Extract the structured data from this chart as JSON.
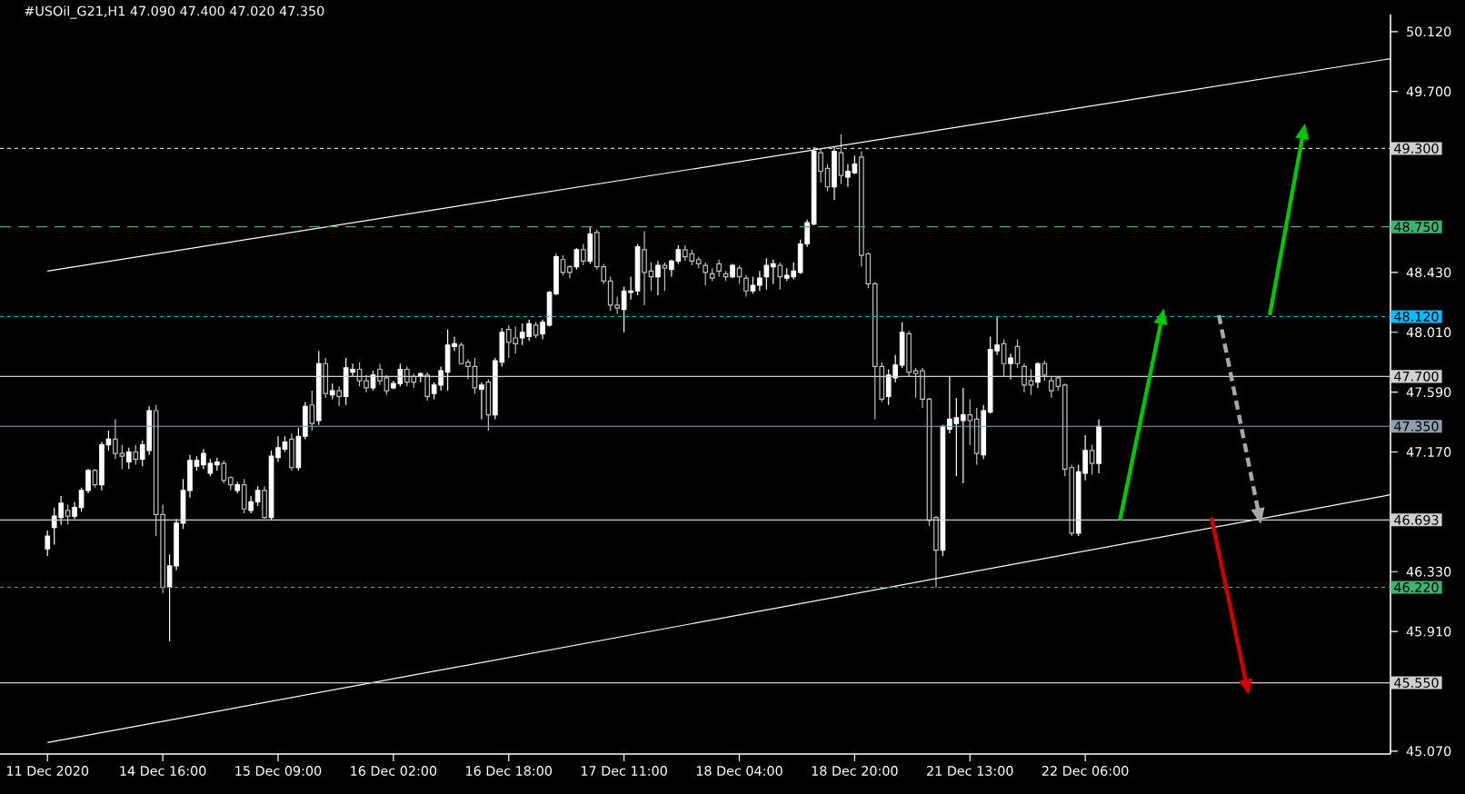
{
  "chart_data": {
    "type": "candlestick",
    "title": "#USOil_G21,H1 47.090 47.400 47.020 47.350",
    "categories": [
      "11 Dec 2020",
      null,
      null,
      null,
      null,
      null,
      null,
      null,
      null,
      null,
      null,
      null,
      null,
      null,
      null,
      null,
      null,
      "14 Dec 16:00",
      null,
      null,
      null,
      null,
      null,
      null,
      null,
      null,
      null,
      null,
      null,
      null,
      null,
      null,
      null,
      null,
      "15 Dec 09:00",
      null,
      null,
      null,
      null,
      null,
      null,
      null,
      null,
      null,
      null,
      null,
      null,
      null,
      null,
      null,
      null,
      "16 Dec 02:00",
      null,
      null,
      null,
      null,
      null,
      null,
      null,
      null,
      null,
      null,
      null,
      null,
      null,
      null,
      null,
      null,
      "16 Dec 18:00",
      null,
      null,
      null,
      null,
      null,
      null,
      null,
      null,
      null,
      null,
      null,
      null,
      null,
      null,
      null,
      null,
      "17 Dec 11:00",
      null,
      null,
      null,
      null,
      null,
      null,
      null,
      null,
      null,
      null,
      null,
      null,
      null,
      null,
      null,
      null,
      "18 Dec 04:00",
      null,
      null,
      null,
      null,
      null,
      null,
      null,
      null,
      null,
      null,
      null,
      null,
      null,
      null,
      null,
      null,
      "18 Dec 20:00",
      null,
      null,
      null,
      null,
      null,
      null,
      null,
      null,
      null,
      null,
      null,
      null,
      null,
      null,
      null,
      null,
      "21 Dec 13:00",
      null,
      null,
      null,
      null,
      null,
      null,
      null,
      null,
      null,
      null,
      null,
      null,
      null,
      null,
      null,
      null,
      "22 Dec 06:00",
      null,
      null,
      null,
      null,
      null,
      null,
      null,
      null,
      null,
      null,
      null,
      null,
      null,
      null,
      null,
      null,
      null,
      null,
      null,
      null,
      null,
      null,
      null,
      null,
      null,
      null,
      null,
      null,
      null,
      null,
      null,
      null,
      null,
      null,
      null,
      null,
      null,
      null,
      null,
      null,
      null,
      null,
      null,
      null,
      null
    ],
    "ohlc": [
      [
        46.49,
        46.62,
        46.44,
        46.58
      ],
      [
        46.64,
        46.78,
        46.52,
        46.72
      ],
      [
        46.71,
        46.86,
        46.66,
        46.81
      ],
      [
        46.76,
        46.8,
        46.66,
        46.72
      ],
      [
        46.72,
        46.82,
        46.7,
        46.78
      ],
      [
        46.78,
        46.92,
        46.75,
        46.9
      ],
      [
        46.9,
        47.05,
        46.88,
        47.04
      ],
      [
        47.04,
        47.05,
        46.92,
        46.94
      ],
      [
        46.94,
        47.24,
        46.9,
        47.22
      ],
      [
        47.22,
        47.32,
        47.18,
        47.26
      ],
      [
        47.26,
        47.4,
        47.12,
        47.16
      ],
      [
        47.16,
        47.22,
        47.05,
        47.14
      ],
      [
        47.1,
        47.2,
        47.05,
        47.17
      ],
      [
        47.17,
        47.22,
        47.08,
        47.12
      ],
      [
        47.12,
        47.25,
        47.07,
        47.22
      ],
      [
        47.18,
        47.49,
        47.15,
        47.46
      ],
      [
        47.46,
        47.5,
        46.58,
        46.73
      ],
      [
        46.73,
        46.8,
        46.18,
        46.22
      ],
      [
        46.22,
        46.45,
        45.84,
        46.37
      ],
      [
        46.37,
        46.7,
        46.34,
        46.67
      ],
      [
        46.67,
        46.98,
        46.63,
        46.9
      ],
      [
        46.9,
        47.15,
        46.85,
        47.11
      ],
      [
        47.07,
        47.14,
        47.04,
        47.11
      ],
      [
        47.08,
        47.19,
        47.05,
        47.16
      ],
      [
        47.02,
        47.12,
        47.0,
        47.09
      ],
      [
        47.08,
        47.13,
        47.04,
        47.1
      ],
      [
        47.09,
        47.11,
        46.95,
        46.97
      ],
      [
        46.99,
        47.0,
        46.9,
        46.94
      ],
      [
        46.9,
        46.96,
        46.88,
        46.94
      ],
      [
        46.94,
        46.98,
        46.74,
        46.77
      ],
      [
        46.76,
        46.86,
        46.74,
        46.82
      ],
      [
        46.82,
        46.93,
        46.79,
        46.9
      ],
      [
        46.9,
        46.93,
        46.7,
        46.71
      ],
      [
        46.71,
        47.18,
        46.69,
        47.14
      ],
      [
        47.13,
        47.28,
        47.1,
        47.2
      ],
      [
        47.19,
        47.28,
        47.17,
        47.24
      ],
      [
        47.26,
        47.3,
        47.04,
        47.06
      ],
      [
        47.06,
        47.34,
        47.04,
        47.28
      ],
      [
        47.28,
        47.52,
        47.26,
        47.49
      ],
      [
        47.5,
        47.6,
        47.32,
        47.37
      ],
      [
        47.39,
        47.88,
        47.36,
        47.79
      ],
      [
        47.79,
        47.83,
        47.55,
        47.58
      ],
      [
        47.57,
        47.65,
        47.54,
        47.6
      ],
      [
        47.6,
        47.63,
        47.49,
        47.56
      ],
      [
        47.56,
        47.83,
        47.5,
        47.76
      ],
      [
        47.73,
        47.79,
        47.7,
        47.75
      ],
      [
        47.75,
        47.8,
        47.63,
        47.67
      ],
      [
        47.67,
        47.71,
        47.59,
        47.62
      ],
      [
        47.62,
        47.74,
        47.6,
        47.71
      ],
      [
        47.75,
        47.79,
        47.64,
        47.67
      ],
      [
        47.69,
        47.71,
        47.57,
        47.6
      ],
      [
        47.62,
        47.67,
        47.61,
        47.65
      ],
      [
        47.65,
        47.79,
        47.63,
        47.75
      ],
      [
        47.75,
        47.77,
        47.63,
        47.66
      ],
      [
        47.7,
        47.72,
        47.62,
        47.66
      ],
      [
        47.7,
        47.73,
        47.66,
        47.72
      ],
      [
        47.71,
        47.73,
        47.53,
        47.56
      ],
      [
        47.58,
        47.66,
        47.54,
        47.64
      ],
      [
        47.64,
        47.77,
        47.6,
        47.74
      ],
      [
        47.73,
        48.03,
        47.6,
        47.92
      ],
      [
        47.91,
        47.98,
        47.88,
        47.93
      ],
      [
        47.92,
        47.94,
        47.78,
        47.79
      ],
      [
        47.8,
        47.82,
        47.68,
        47.77
      ],
      [
        47.77,
        47.83,
        47.58,
        47.62
      ],
      [
        47.61,
        47.66,
        47.4,
        47.64
      ],
      [
        47.66,
        47.68,
        47.32,
        47.43
      ],
      [
        47.43,
        47.83,
        47.4,
        47.81
      ],
      [
        47.8,
        48.04,
        47.77,
        48.01
      ],
      [
        48.03,
        48.06,
        47.83,
        47.94
      ],
      [
        47.97,
        48.05,
        47.86,
        47.93
      ],
      [
        47.97,
        48.07,
        47.92,
        48.01
      ],
      [
        47.98,
        48.1,
        47.95,
        48.07
      ],
      [
        48.06,
        48.08,
        47.97,
        47.99
      ],
      [
        48.0,
        48.1,
        47.96,
        48.08
      ],
      [
        48.06,
        48.3,
        48.05,
        48.29
      ],
      [
        48.28,
        48.56,
        48.27,
        48.54
      ],
      [
        48.52,
        48.55,
        48.41,
        48.43
      ],
      [
        48.47,
        48.48,
        48.39,
        48.43
      ],
      [
        48.47,
        48.6,
        48.45,
        48.59
      ],
      [
        48.59,
        48.63,
        48.48,
        48.51
      ],
      [
        48.51,
        48.75,
        48.49,
        48.7
      ],
      [
        48.71,
        48.73,
        48.45,
        48.47
      ],
      [
        48.47,
        48.49,
        48.35,
        48.37
      ],
      [
        48.37,
        48.4,
        48.16,
        48.2
      ],
      [
        48.2,
        48.26,
        48.14,
        48.18
      ],
      [
        48.17,
        48.33,
        48.01,
        48.3
      ],
      [
        48.29,
        48.4,
        48.24,
        48.3
      ],
      [
        48.3,
        48.63,
        48.27,
        48.61
      ],
      [
        48.59,
        48.72,
        48.2,
        48.43
      ],
      [
        48.44,
        48.5,
        48.3,
        48.4
      ],
      [
        48.4,
        48.51,
        48.27,
        48.48
      ],
      [
        48.48,
        48.5,
        48.3,
        48.46
      ],
      [
        48.45,
        48.52,
        48.4,
        48.51
      ],
      [
        48.51,
        48.62,
        48.49,
        48.59
      ],
      [
        48.59,
        48.62,
        48.51,
        48.54
      ],
      [
        48.56,
        48.59,
        48.48,
        48.51
      ],
      [
        48.52,
        48.54,
        48.46,
        48.49
      ],
      [
        48.48,
        48.5,
        48.34,
        48.43
      ],
      [
        48.42,
        48.46,
        48.37,
        48.39
      ],
      [
        48.49,
        48.52,
        48.4,
        48.44
      ],
      [
        48.42,
        48.44,
        48.37,
        48.4
      ],
      [
        48.4,
        48.49,
        48.39,
        48.48
      ],
      [
        48.46,
        48.48,
        48.35,
        48.4
      ],
      [
        48.39,
        48.41,
        48.26,
        48.3
      ],
      [
        48.3,
        48.4,
        48.28,
        48.34
      ],
      [
        48.34,
        48.44,
        48.3,
        48.39
      ],
      [
        48.4,
        48.53,
        48.31,
        48.48
      ],
      [
        48.47,
        48.52,
        48.35,
        48.49
      ],
      [
        48.48,
        48.5,
        48.31,
        48.4
      ],
      [
        48.39,
        48.46,
        48.37,
        48.41
      ],
      [
        48.4,
        48.5,
        48.38,
        48.44
      ],
      [
        48.43,
        48.66,
        48.42,
        48.63
      ],
      [
        48.63,
        48.8,
        48.61,
        48.78
      ],
      [
        48.77,
        49.31,
        48.76,
        49.28
      ],
      [
        49.27,
        49.3,
        49.06,
        49.14
      ],
      [
        49.16,
        49.19,
        49.0,
        49.03
      ],
      [
        49.03,
        49.31,
        48.94,
        49.28
      ],
      [
        49.27,
        49.4,
        49.05,
        49.11
      ],
      [
        49.1,
        49.19,
        49.03,
        49.14
      ],
      [
        49.13,
        49.25,
        49.12,
        49.19
      ],
      [
        49.24,
        49.28,
        48.47,
        48.55
      ],
      [
        48.56,
        48.57,
        48.32,
        48.35
      ],
      [
        48.35,
        48.36,
        47.4,
        47.77
      ],
      [
        47.77,
        47.8,
        47.52,
        47.54
      ],
      [
        47.56,
        47.75,
        47.5,
        47.71
      ],
      [
        47.69,
        47.85,
        47.66,
        47.78
      ],
      [
        47.78,
        48.08,
        47.76,
        48.01
      ],
      [
        48.0,
        48.02,
        47.7,
        47.73
      ],
      [
        47.74,
        47.76,
        47.55,
        47.72
      ],
      [
        47.74,
        47.76,
        47.48,
        47.54
      ],
      [
        47.54,
        47.55,
        46.65,
        46.69
      ],
      [
        46.71,
        46.72,
        46.22,
        46.48
      ],
      [
        46.48,
        47.36,
        46.44,
        47.35
      ],
      [
        47.33,
        47.7,
        47.3,
        47.4
      ],
      [
        47.37,
        47.55,
        47.0,
        47.41
      ],
      [
        47.39,
        47.62,
        46.95,
        47.43
      ],
      [
        47.43,
        47.54,
        47.22,
        47.39
      ],
      [
        47.4,
        47.48,
        47.08,
        47.16
      ],
      [
        47.15,
        47.5,
        47.12,
        47.46
      ],
      [
        47.45,
        47.98,
        47.44,
        47.89
      ],
      [
        47.88,
        48.12,
        47.85,
        47.92
      ],
      [
        47.93,
        47.96,
        47.7,
        47.79
      ],
      [
        47.79,
        47.86,
        47.68,
        47.83
      ],
      [
        47.91,
        47.96,
        47.76,
        47.79
      ],
      [
        47.77,
        47.79,
        47.59,
        47.64
      ],
      [
        47.67,
        47.75,
        47.57,
        47.64
      ],
      [
        47.66,
        47.8,
        47.62,
        47.79
      ],
      [
        47.79,
        47.81,
        47.67,
        47.71
      ],
      [
        47.67,
        47.7,
        47.55,
        47.6
      ],
      [
        47.69,
        47.7,
        47.6,
        47.63
      ],
      [
        47.64,
        47.65,
        47.0,
        47.05
      ],
      [
        47.06,
        47.08,
        46.58,
        46.6
      ],
      [
        46.6,
        47.08,
        46.58,
        47.03
      ],
      [
        47.02,
        47.29,
        46.97,
        47.18
      ],
      [
        47.18,
        47.22,
        47.01,
        47.09
      ],
      [
        47.09,
        47.4,
        47.02,
        47.35
      ],
      null,
      null,
      null,
      null,
      null,
      null,
      null,
      null,
      null,
      null,
      null,
      null,
      null,
      null,
      null,
      null,
      null,
      null,
      null,
      null,
      null,
      null,
      null,
      null,
      null,
      null,
      null,
      null,
      null,
      null,
      null,
      null,
      null,
      null,
      null,
      null,
      null,
      null,
      null,
      null,
      null,
      null,
      null
    ],
    "series": [
      {
        "type": "line",
        "color": "#ffffff",
        "values": [
          48.44,
          null,
          null,
          null,
          null,
          null,
          null,
          null,
          null,
          null,
          null,
          null,
          null,
          null,
          null,
          null,
          null,
          null,
          null,
          null,
          null,
          null,
          null,
          null,
          null,
          null,
          null,
          null,
          null,
          null,
          null,
          null,
          null,
          null,
          null,
          null,
          null,
          null,
          null,
          null,
          null,
          null,
          null,
          null,
          null,
          null,
          null,
          null,
          null,
          null,
          null,
          null,
          null,
          null,
          null,
          null,
          null,
          null,
          null,
          null,
          null,
          null,
          null,
          null,
          null,
          null,
          null,
          null,
          null,
          null,
          null,
          null,
          null,
          null,
          null,
          null,
          null,
          null,
          null,
          null,
          null,
          null,
          null,
          null,
          null,
          null,
          null,
          null,
          null,
          null,
          null,
          null,
          null,
          null,
          null,
          null,
          null,
          null,
          null,
          null,
          null,
          null,
          null,
          null,
          null,
          null,
          null,
          null,
          null,
          null,
          null,
          null,
          null,
          null,
          null,
          null,
          null,
          null,
          null,
          null,
          null,
          null,
          null,
          null,
          null,
          null,
          null,
          null,
          null,
          null,
          null,
          null,
          null,
          null,
          null,
          null,
          null,
          null,
          null,
          null,
          null,
          null,
          null,
          null,
          null,
          null,
          null,
          null,
          null,
          null,
          null,
          null,
          null,
          null,
          null,
          null,
          null,
          null,
          null,
          null,
          null,
          null,
          null,
          null,
          null,
          null,
          null,
          null,
          null,
          null,
          null,
          null,
          null,
          null,
          null,
          null,
          null,
          null,
          null,
          null,
          null,
          null,
          null,
          null,
          null,
          null,
          null,
          null,
          null,
          null,
          null,
          null,
          null,
          null,
          null,
          null,
          null,
          null,
          49.93
        ]
      },
      {
        "type": "line",
        "color": "#ffffff",
        "values": [
          45.13,
          null,
          null,
          null,
          null,
          null,
          null,
          null,
          null,
          null,
          null,
          null,
          null,
          null,
          null,
          null,
          null,
          null,
          null,
          null,
          null,
          null,
          null,
          null,
          null,
          null,
          null,
          null,
          null,
          null,
          null,
          null,
          null,
          null,
          null,
          null,
          null,
          null,
          null,
          null,
          null,
          null,
          null,
          null,
          null,
          null,
          null,
          null,
          null,
          null,
          null,
          null,
          null,
          null,
          null,
          null,
          null,
          null,
          null,
          null,
          null,
          null,
          null,
          null,
          null,
          null,
          null,
          null,
          null,
          null,
          null,
          null,
          null,
          null,
          null,
          null,
          null,
          null,
          null,
          null,
          null,
          null,
          null,
          null,
          null,
          null,
          null,
          null,
          null,
          null,
          null,
          null,
          null,
          null,
          null,
          null,
          null,
          null,
          null,
          null,
          null,
          null,
          null,
          null,
          null,
          null,
          null,
          null,
          null,
          null,
          null,
          null,
          null,
          null,
          null,
          null,
          null,
          null,
          null,
          null,
          null,
          null,
          null,
          null,
          null,
          null,
          null,
          null,
          null,
          null,
          null,
          null,
          null,
          null,
          null,
          null,
          null,
          null,
          null,
          null,
          null,
          null,
          null,
          null,
          null,
          null,
          null,
          null,
          null,
          null,
          null,
          null,
          null,
          null,
          null,
          null,
          null,
          null,
          null,
          null,
          null,
          null,
          null,
          null,
          null,
          null,
          null,
          null,
          null,
          null,
          null,
          null,
          null,
          null,
          null,
          null,
          null,
          null,
          null,
          null,
          null,
          null,
          null,
          null,
          null,
          null,
          null,
          null,
          null,
          null,
          null,
          null,
          null,
          null,
          null,
          null,
          null,
          null,
          46.87
        ]
      }
    ],
    "ylim": [
      45.05,
      50.24
    ],
    "yticks": [
      {
        "value": 45.07,
        "label": "45.070"
      },
      {
        "value": 45.91,
        "label": "45.910"
      },
      {
        "value": 46.33,
        "label": "46.330"
      },
      {
        "value": 47.17,
        "label": "47.170"
      },
      {
        "value": 47.59,
        "label": "47.590"
      },
      {
        "value": 48.01,
        "label": "48.010"
      },
      {
        "value": 48.43,
        "label": "48.430"
      },
      {
        "value": 49.28,
        "label": null
      },
      {
        "value": 49.7,
        "label": "49.700"
      },
      {
        "value": 50.12,
        "label": "50.120"
      }
    ],
    "ref_lines": [
      {
        "axis": "y",
        "value": 49.3,
        "label": "49.300",
        "color": "#d0d0d0",
        "line_style": "dotted"
      },
      {
        "axis": "y",
        "value": 48.75,
        "label": "48.750",
        "color": "#3cb371",
        "line_style": "dashed"
      },
      {
        "axis": "y",
        "value": 48.12,
        "label": "48.120",
        "color": "#00bfff",
        "line_style": "dotted"
      },
      {
        "axis": "y",
        "value": 47.7,
        "label": "47.700",
        "color": "#d0d0d0",
        "line_style": "solid"
      },
      {
        "axis": "y",
        "value": 47.35,
        "label": "47.350",
        "color": "#8f9fae",
        "line_style": "solid"
      },
      {
        "axis": "y",
        "value": 46.693,
        "label": "46.693",
        "color": "#d0d0d0",
        "line_style": "solid"
      },
      {
        "axis": "y",
        "value": 46.22,
        "label": "46.220",
        "color": "#3cb371",
        "line_style": "dotted"
      },
      {
        "axis": "y",
        "value": 45.55,
        "label": "45.550",
        "color": "#d0d0d0",
        "line_style": "solid"
      }
    ]
  }
}
